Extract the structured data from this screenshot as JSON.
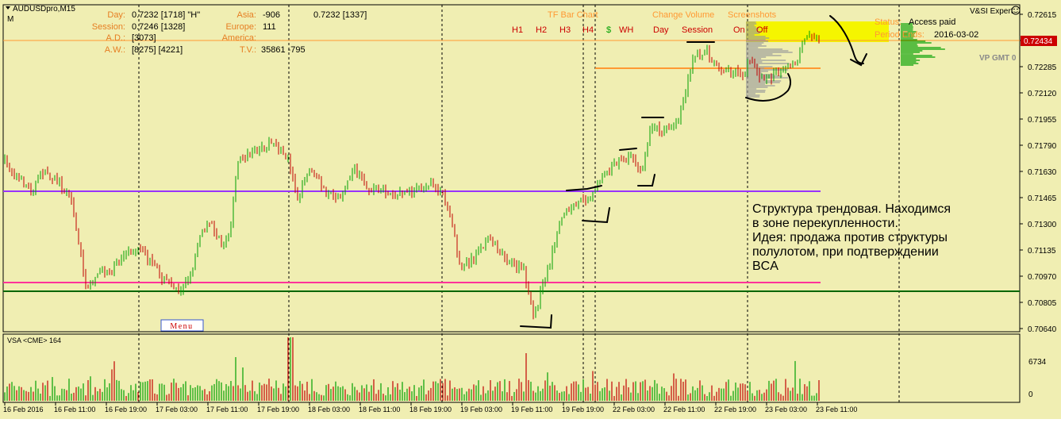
{
  "window": {
    "symbol_title": "AUDUSDpro,M15",
    "symbol_sub": "M",
    "expert_name": "V&SI Expert",
    "smiley_icon": "smiley-icon",
    "menu_button": "Menu"
  },
  "stats": {
    "day_label": "Day:",
    "day_value": "0.7232 [1718]  \"H\"",
    "session_label": "Session:",
    "session_value": "0.7246 [1328]",
    "ad_label": "A.D.:",
    "ad_value": "[3073]",
    "aw_label": "A.W.:",
    "aw_value": "[8275]  [4221]",
    "asia_label": "Asia:",
    "asia_value": "-906",
    "asia_value2": "0.7232 [1337]",
    "europe_label": "Europe:",
    "europe_value": "111",
    "america_label": "America:",
    "tv_label": "T.V.:",
    "tv_value": "35861  -795"
  },
  "toolbar": {
    "tf_bar_chart": "TF Bar Chart",
    "change_volume": "Change Volume",
    "screenshots": "Screenshots",
    "tf_buttons": [
      "H1",
      "H2",
      "H3",
      "H4",
      "$",
      "WH"
    ],
    "day_btn": "Day",
    "session_btn": "Session",
    "on_btn": "On",
    "off_btn": "Off"
  },
  "status": {
    "status_label": "Status:",
    "status_value": "Access paid",
    "period_label": "Period Ends:",
    "period_value": "2016-03-02"
  },
  "vp_label": "VP GMT 0",
  "annotation": [
    "Структура трендовая. Находимся",
    "в зоне перекупленности.",
    "Идея: продажа против структуры",
    "полулотом, при подтверждении",
    "BCA"
  ],
  "volume_panel": {
    "label": "VSA <CME> 164",
    "max_label": "6734",
    "zero_label": "0"
  },
  "colors": {
    "background": "#f0eeb2",
    "bull": "#00a000",
    "bear": "#c00000",
    "purple_line": "#9933ff",
    "magenta_line": "#ff3399",
    "green_line": "#006600",
    "orange_line": "#ff9933",
    "yellow_zone": "#f5f500",
    "price_tag": "#cc0000"
  },
  "price_axis": {
    "labels": [
      "0.72615",
      "0.72434",
      "0.72285",
      "0.72120",
      "0.71955",
      "0.71790",
      "0.71630",
      "0.71465",
      "0.71300",
      "0.71135",
      "0.70970",
      "0.70805",
      "0.70640"
    ],
    "current": "0.72434"
  },
  "time_axis": [
    "16 Feb 2016",
    "16 Feb 11:00",
    "16 Feb 19:00",
    "17 Feb 03:00",
    "17 Feb 11:00",
    "17 Feb 19:00",
    "18 Feb 03:00",
    "18 Feb 11:00",
    "18 Feb 19:00",
    "19 Feb 03:00",
    "19 Feb 11:00",
    "19 Feb 19:00",
    "22 Feb 03:00",
    "22 Feb 11:00",
    "22 Feb 19:00",
    "23 Feb 03:00",
    "23 Feb 11:00"
  ]
}
